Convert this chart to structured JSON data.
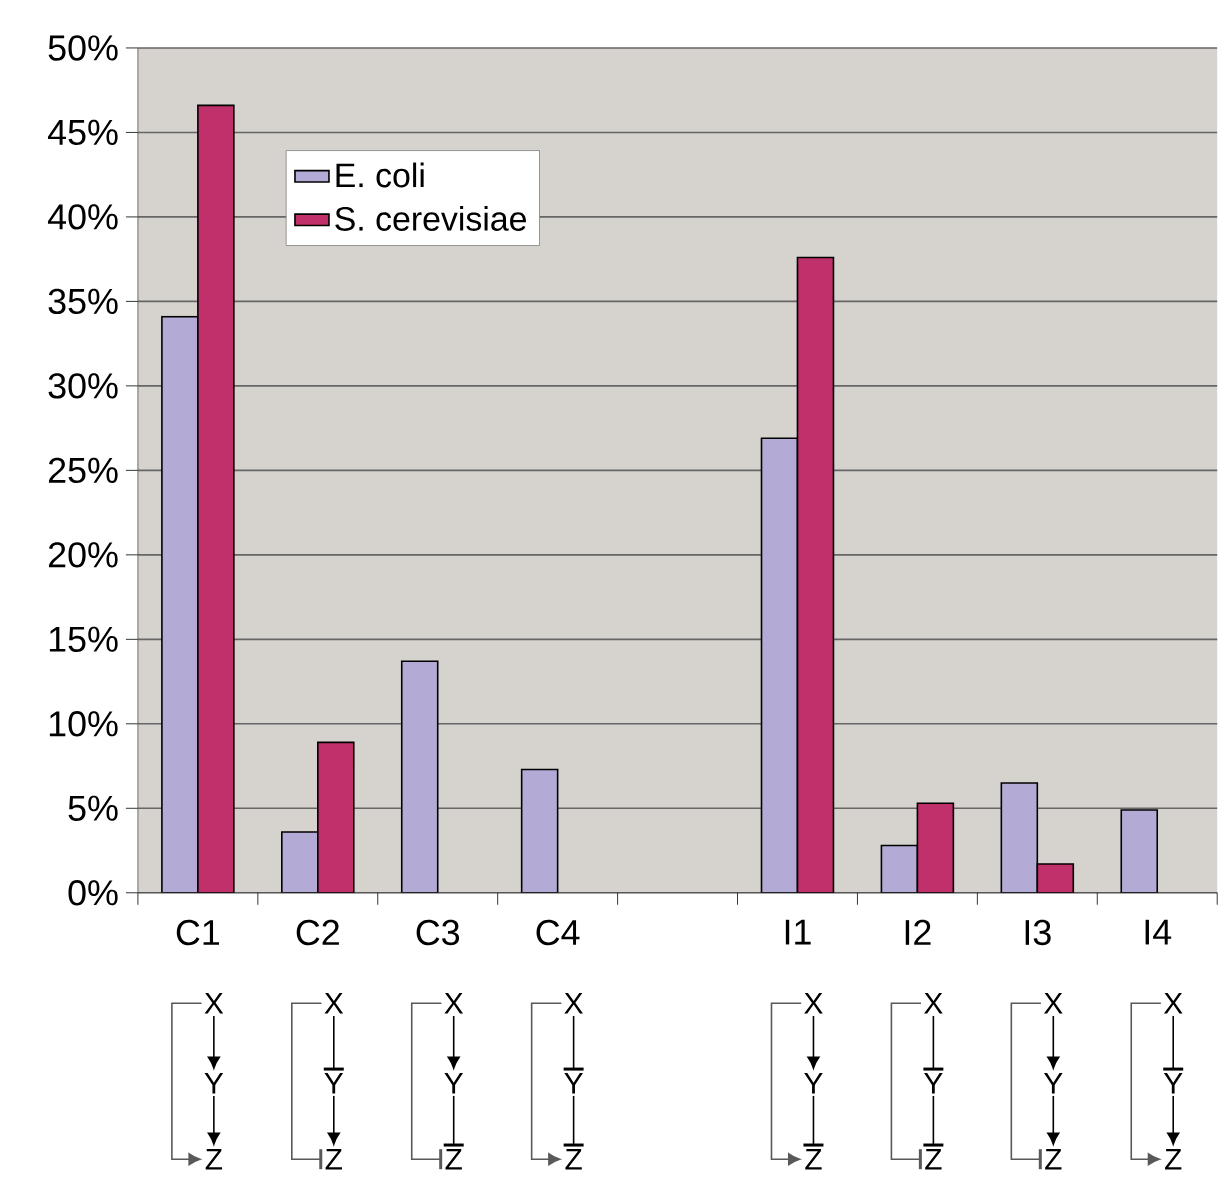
{
  "chart_data": {
    "type": "bar",
    "categories": [
      "C1",
      "C2",
      "C3",
      "C4",
      null,
      "I1",
      "I2",
      "I3",
      "I4"
    ],
    "series": [
      {
        "name": "E. coli",
        "color": "#b3aad6",
        "values": [
          34.1,
          3.6,
          13.7,
          7.3,
          null,
          26.9,
          2.8,
          6.5,
          4.9
        ]
      },
      {
        "name": "S. cerevisiae",
        "color": "#c0306a",
        "values": [
          46.6,
          8.9,
          null,
          null,
          null,
          37.6,
          5.3,
          1.7,
          null
        ]
      }
    ],
    "ylim": [
      0,
      50
    ],
    "yticks": [
      {
        "value": 0,
        "label": "0%"
      },
      {
        "value": 5,
        "label": "5%"
      },
      {
        "value": 10,
        "label": "10%"
      },
      {
        "value": 15,
        "label": "15%"
      },
      {
        "value": 20,
        "label": "20%"
      },
      {
        "value": 25,
        "label": "25%"
      },
      {
        "value": 30,
        "label": "30%"
      },
      {
        "value": 35,
        "label": "35%"
      },
      {
        "value": 40,
        "label": "40%"
      },
      {
        "value": 45,
        "label": "45%"
      },
      {
        "value": 50,
        "label": "50%"
      }
    ],
    "grid": "y",
    "legend": "top left",
    "annotations": [
      "X",
      "Y",
      "Z"
    ]
  }
}
